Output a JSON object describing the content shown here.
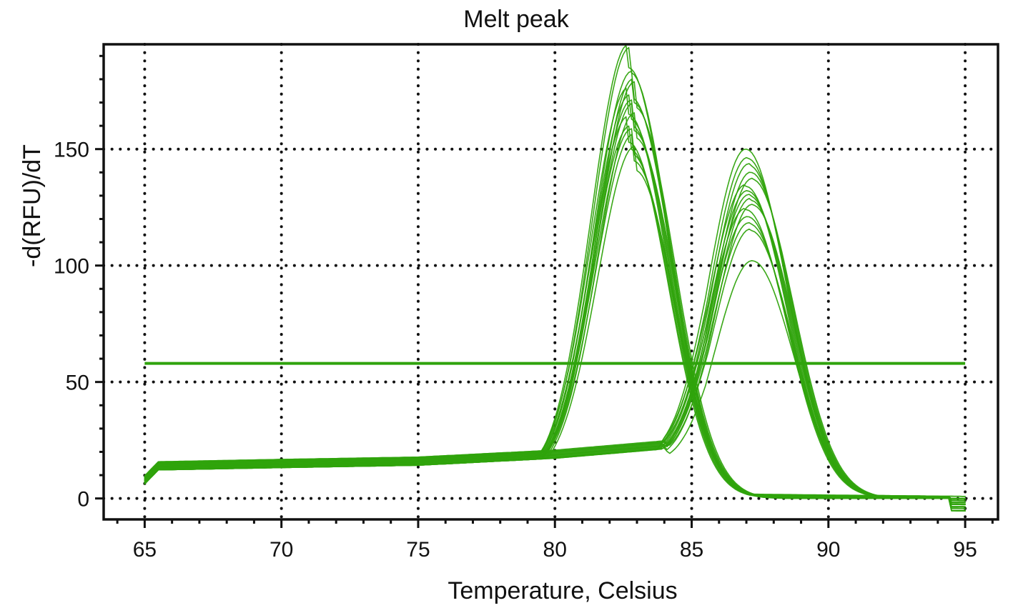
{
  "chart_data": {
    "type": "line",
    "title": "Melt peak",
    "xlabel": "Temperature, Celsius",
    "ylabel": "-d(RFU)/dT",
    "xlim": [
      63.5,
      96.2
    ],
    "ylim": [
      -9,
      195
    ],
    "x_ticks": [
      65,
      70,
      75,
      80,
      85,
      90,
      95
    ],
    "y_ticks": [
      0,
      50,
      100,
      150
    ],
    "grid": true,
    "line_color": "#2fa30c",
    "threshold": {
      "value": 58,
      "x_range": [
        65,
        95
      ]
    },
    "series_groups": [
      {
        "peak_temperature": 82.8,
        "peak_heights": [
          185,
          183,
          172,
          170,
          168,
          165,
          163,
          160,
          158,
          155,
          153,
          150,
          148,
          145,
          141
        ],
        "left_width": 1.35,
        "right_width": 1.45
      },
      {
        "peak_temperature": 87.1,
        "peak_heights": [
          150,
          146,
          143,
          140,
          137,
          134,
          132,
          130,
          128,
          126,
          124,
          121,
          118,
          115,
          102
        ],
        "left_width": 1.4,
        "right_width": 1.5
      }
    ],
    "baseline": [
      {
        "x": 65,
        "y": 8
      },
      {
        "x": 65.5,
        "y": 14
      },
      {
        "x": 70,
        "y": 15
      },
      {
        "x": 75,
        "y": 16
      },
      {
        "x": 80,
        "y": 19
      },
      {
        "x": 84,
        "y": 23
      },
      {
        "x": 85.5,
        "y": 2
      },
      {
        "x": 90,
        "y": 1
      },
      {
        "x": 95,
        "y": 0
      }
    ]
  }
}
